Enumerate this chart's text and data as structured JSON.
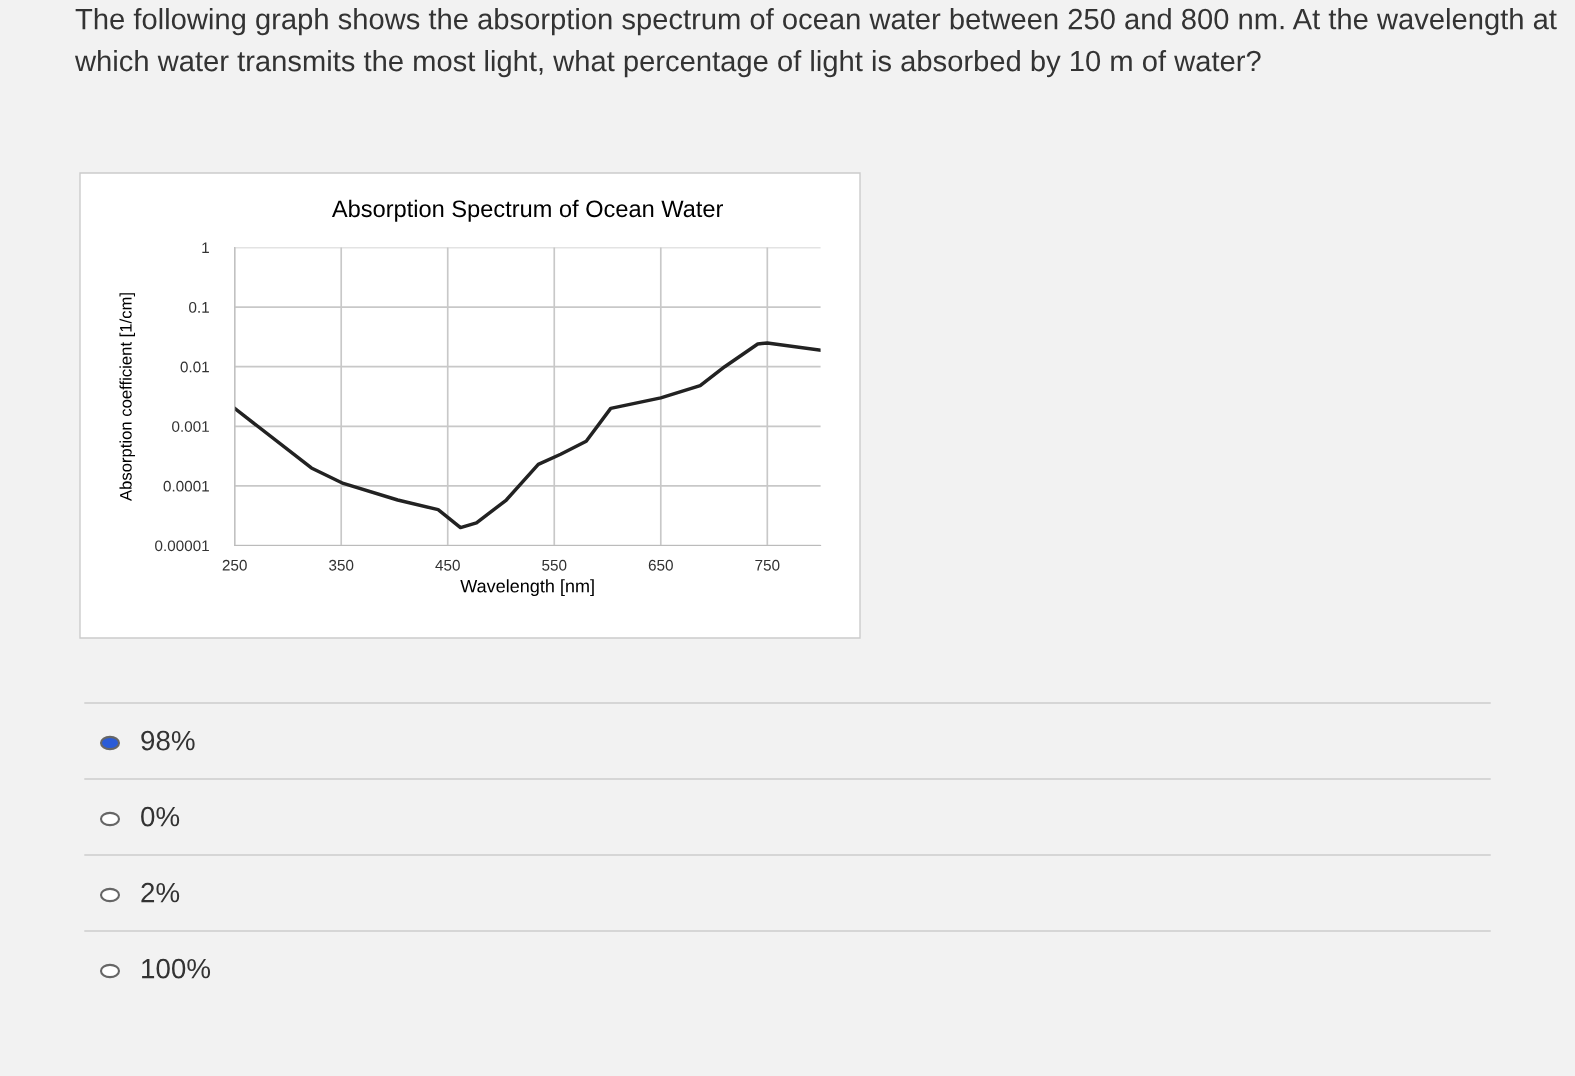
{
  "chart_data": {
    "type": "line",
    "title": "Absorption Spectrum of Ocean Water",
    "xlabel": "Wavelength [nm]",
    "ylabel": "Absorption coefficient [1/cm]",
    "annotations": [
      "The following graph shows the absorption spectrum of ocean water between 250 and 800 nm. At the wavelength at which water transmits the most light, what percentage of light is absorbed by 10 m of water?",
      "98%",
      "0%",
      "2%",
      "100%"
    ],
    "x": [
      250,
      322,
      352,
      403,
      441,
      462,
      477,
      505,
      535,
      556,
      580,
      603,
      650,
      687,
      710,
      741,
      750,
      800
    ],
    "series": [
      {
        "color": "#222222",
        "values": [
          0.002,
          0.0002,
          0.00011,
          5.8e-05,
          4e-05,
          2e-05,
          2.4e-05,
          5.8e-05,
          0.00023,
          0.00034,
          0.00056,
          0.002,
          0.003,
          0.0048,
          0.01,
          0.024,
          0.025,
          0.019
        ]
      }
    ],
    "log": "y",
    "grid": true,
    "marker": "none",
    "line_style": "solid",
    "xlim": [
      250,
      800
    ],
    "xticks": [
      250,
      350,
      450,
      550,
      650,
      750
    ],
    "ylim": [
      1e-05,
      1
    ],
    "yticks": [
      1,
      {
        "value": 0.1,
        "label": "0.1"
      },
      {
        "value": 0.01,
        "label": "0.01"
      },
      {
        "value": 0.001,
        "label": "0.001"
      },
      {
        "value": 0.0001,
        "label": "0.0001"
      },
      {
        "value": 1e-05,
        "label": "0.00001"
      }
    ]
  }
}
